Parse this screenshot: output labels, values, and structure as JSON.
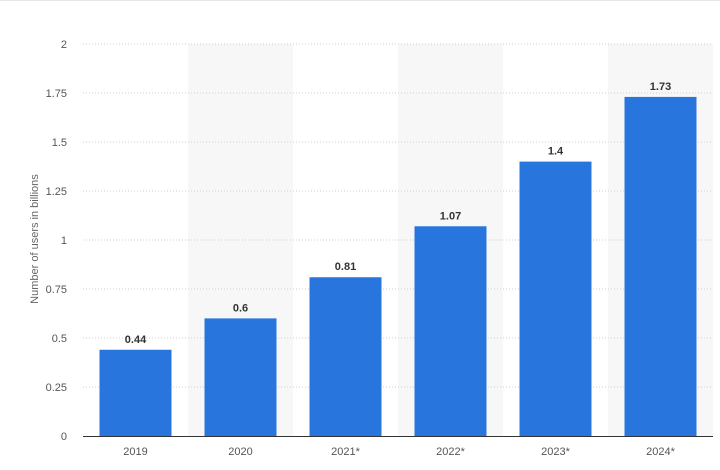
{
  "chart_data": {
    "type": "bar",
    "categories": [
      "2019",
      "2020",
      "2021*",
      "2022*",
      "2023*",
      "2024*"
    ],
    "values": [
      0.44,
      0.6,
      0.81,
      1.07,
      1.4,
      1.73
    ],
    "value_labels": [
      "0.44",
      "0.6",
      "0.81",
      "1.07",
      "1.4",
      "1.73"
    ],
    "ylabel": "Number of users in billions",
    "xlabel": "",
    "ylim": [
      0,
      2
    ],
    "yticks": [
      "0",
      "0.25",
      "0.5",
      "0.75",
      "1",
      "1.25",
      "1.5",
      "1.75",
      "2"
    ],
    "grid": true,
    "bar_color": "#2876dd",
    "band_color": "#f7f7f7"
  }
}
